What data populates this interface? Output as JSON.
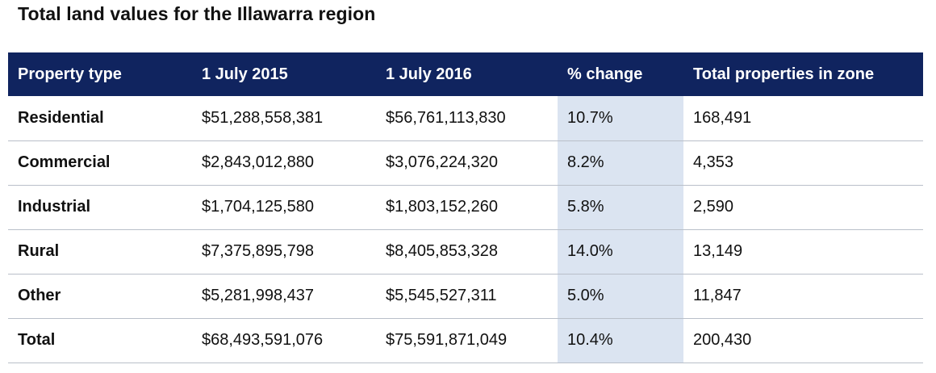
{
  "title": "Total land values for the Illawarra region",
  "table": {
    "headers": [
      "Property type",
      "1 July 2015",
      "1 July 2016",
      "% change",
      "Total properties in zone"
    ],
    "rows": [
      [
        "Residential",
        "$51,288,558,381",
        "$56,761,113,830",
        "10.7%",
        "168,491"
      ],
      [
        "Commercial",
        "$2,843,012,880",
        "$3,076,224,320",
        "8.2%",
        "4,353"
      ],
      [
        "Industrial",
        "$1,704,125,580",
        "$1,803,152,260",
        "5.8%",
        "2,590"
      ],
      [
        "Rural",
        "$7,375,895,798",
        "$8,405,853,328",
        "14.0%",
        "13,149"
      ],
      [
        "Other",
        "$5,281,998,437",
        "$5,545,527,311",
        "5.0%",
        "11,847"
      ],
      [
        "Total",
        "$68,493,591,076",
        "$75,591,871,049",
        "10.4%",
        "200,430"
      ]
    ]
  },
  "colors": {
    "header_background": "#10245f",
    "highlight_column": "#dbe4f1",
    "row_divider": "#b9bfc9"
  }
}
